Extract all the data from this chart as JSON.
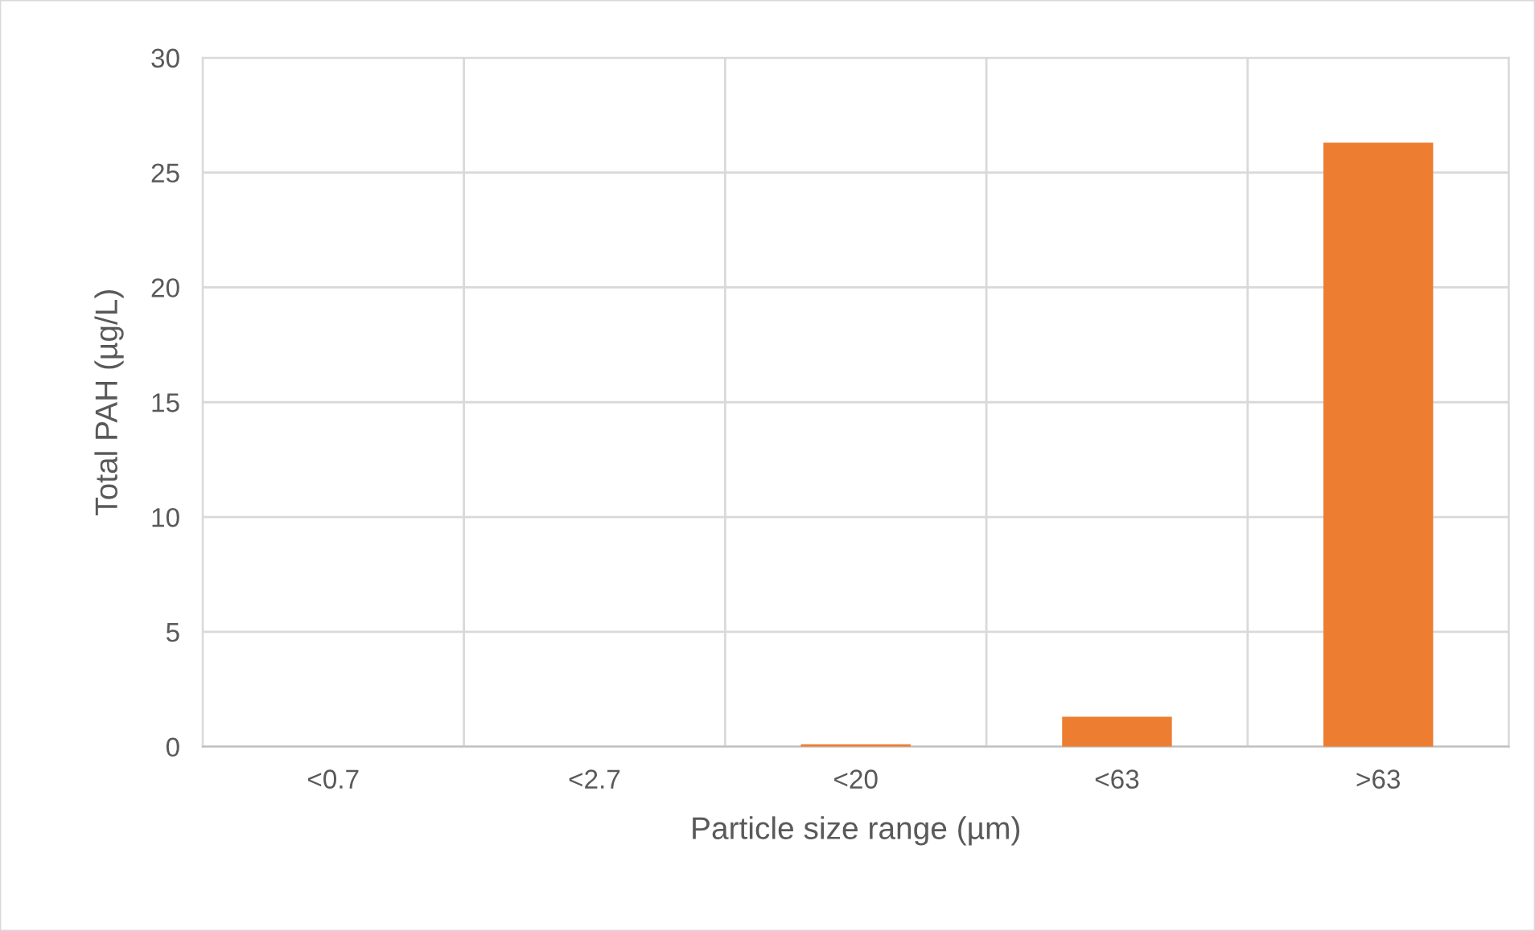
{
  "chart_data": {
    "type": "bar",
    "xlabel": "Particle size range (µm)",
    "ylabel": "Total PAH (µg/L)",
    "categories": [
      "<0.7",
      "<2.7",
      "<20",
      "<63",
      ">63"
    ],
    "values": [
      0,
      0,
      0.1,
      1.3,
      26.3
    ],
    "color": "#ed7d31",
    "ylim": [
      0,
      30
    ],
    "yticks": [
      0,
      5,
      10,
      15,
      20,
      25,
      30
    ],
    "grid": true
  }
}
